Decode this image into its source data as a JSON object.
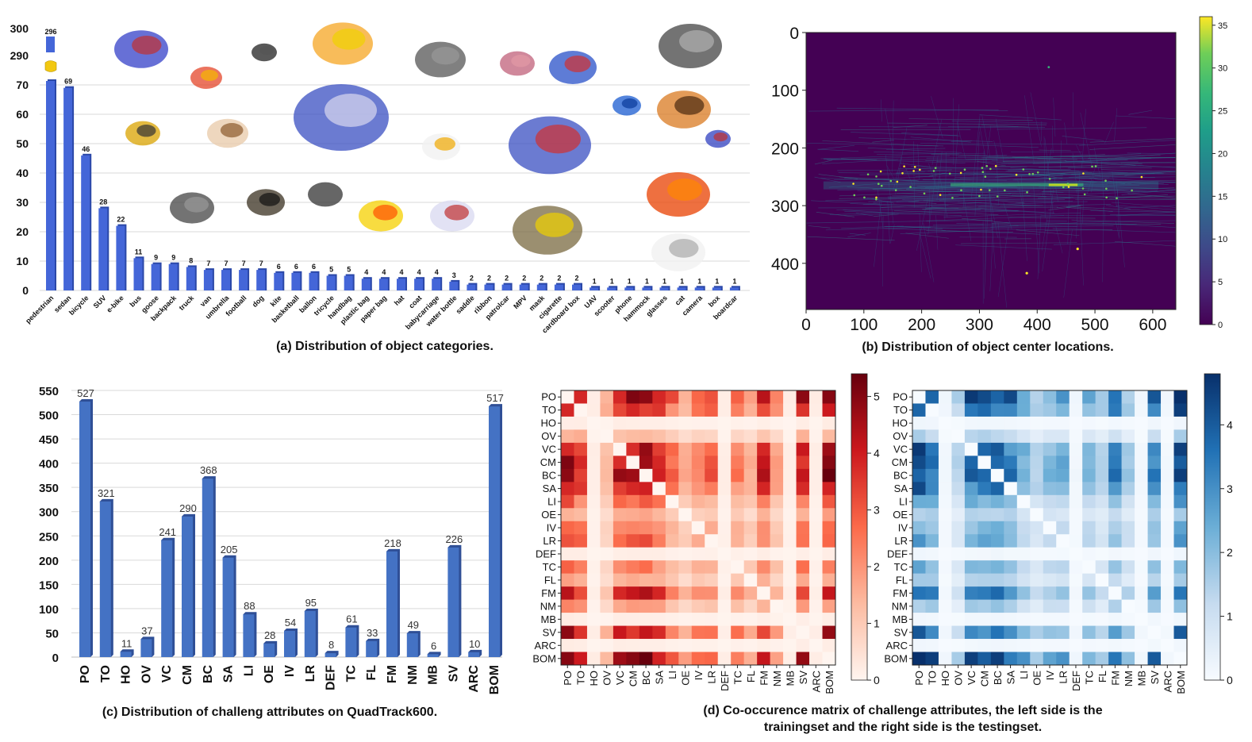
{
  "chart_data": [
    {
      "id": "a",
      "type": "bar",
      "title": "(a) Distribution of object categories.",
      "categories": [
        "pedestrian",
        "sedan",
        "bicycle",
        "SUV",
        "e-bike",
        "bus",
        "goose",
        "backpack",
        "truck",
        "van",
        "umbrella",
        "football",
        "dog",
        "kite",
        "basketball",
        "ballon",
        "tricycle",
        "handbag",
        "plastic bag",
        "paper bag",
        "hat",
        "coat",
        "babycarriage",
        "water bottle",
        "saddle",
        "ribbon",
        "patrolcar",
        "MPV",
        "mask",
        "cigarette",
        "cardboard box",
        "UAV",
        "scooter",
        "phone",
        "hammock",
        "glasses",
        "cat",
        "camera",
        "box",
        "boardcar"
      ],
      "values": [
        296,
        69,
        46,
        28,
        22,
        11,
        9,
        9,
        8,
        7,
        7,
        7,
        7,
        6,
        6,
        6,
        5,
        5,
        4,
        4,
        4,
        4,
        4,
        3,
        2,
        2,
        2,
        2,
        2,
        2,
        2,
        1,
        1,
        1,
        1,
        1,
        1,
        1,
        1,
        1
      ],
      "yticks_lower": [
        "0",
        "10",
        "20",
        "30",
        "40",
        "50",
        "60",
        "70"
      ],
      "yticks_upper": [
        "290",
        "300"
      ],
      "ylim_lower": [
        0,
        72
      ],
      "ylim_upper": [
        288,
        302
      ],
      "axis_break": true,
      "grid": true,
      "bar_color": "#4466d8"
    },
    {
      "id": "b",
      "type": "heatmap",
      "title": "(b) Distribution of object center locations.",
      "xlim": [
        0,
        640
      ],
      "ylim": [
        0,
        480
      ],
      "xticks": [
        "0",
        "100",
        "200",
        "300",
        "400",
        "500",
        "600"
      ],
      "yticks": [
        "0",
        "100",
        "200",
        "300",
        "400"
      ],
      "colorbar_ticks": [
        "0",
        "5",
        "10",
        "15",
        "20",
        "25",
        "30",
        "35"
      ],
      "colorbar_range": [
        0,
        36
      ],
      "colormap": "viridis"
    },
    {
      "id": "c",
      "type": "bar",
      "title": "(c) Distribution of challeng attributes on  QuadTrack600.",
      "categories": [
        "PO",
        "TO",
        "HO",
        "OV",
        "VC",
        "CM",
        "BC",
        "SA",
        "LI",
        "OE",
        "IV",
        "LR",
        "DEF",
        "TC",
        "FL",
        "FM",
        "NM",
        "MB",
        "SV",
        "ARC",
        "BOM"
      ],
      "values": [
        527,
        321,
        11,
        37,
        241,
        290,
        368,
        205,
        88,
        28,
        54,
        95,
        8,
        61,
        33,
        218,
        49,
        6,
        226,
        10,
        517
      ],
      "yticks": [
        "0",
        "50",
        "100",
        "150",
        "200",
        "250",
        "300",
        "350",
        "400",
        "450",
        "500",
        "550"
      ],
      "ylim": [
        0,
        550
      ],
      "grid": true,
      "bar_color": "#4472c4"
    },
    {
      "id": "d",
      "type": "heatmap",
      "title_line1": "(d) Co-occurence matrix of challenge attributes, the left side is the",
      "title_line2": "trainingset and the right side is the testingset.",
      "labels": [
        "PO",
        "TO",
        "HO",
        "OV",
        "VC",
        "CM",
        "BC",
        "SA",
        "LI",
        "OE",
        "IV",
        "LR",
        "DEF",
        "TC",
        "FL",
        "FM",
        "NM",
        "MB",
        "SV",
        "ARC",
        "BOM"
      ],
      "train_colorbar_ticks": [
        "0",
        "1",
        "2",
        "3",
        "4",
        "5"
      ],
      "train_range": [
        0,
        5.4
      ],
      "test_colorbar_ticks": [
        "0",
        "1",
        "2",
        "3",
        "4"
      ],
      "test_range": [
        0,
        4.8
      ],
      "train_colormap": "Reds",
      "test_colormap": "Blues"
    }
  ]
}
